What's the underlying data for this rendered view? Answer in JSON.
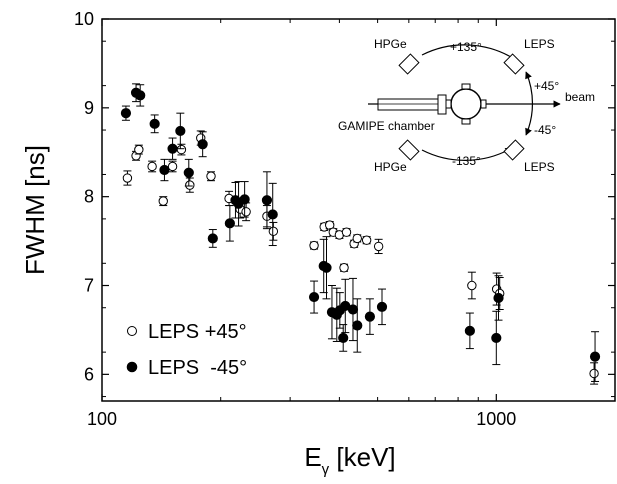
{
  "chart_data": {
    "type": "scatter",
    "title": "",
    "xlabel_main": "E",
    "xlabel_sub": "γ",
    "xlabel_unit": " [keV]",
    "ylabel": "FWHM [ns]",
    "xscale": "log",
    "xlim": [
      100,
      2000
    ],
    "ylim": [
      5.7,
      10
    ],
    "x_ticks": [
      100,
      1000
    ],
    "x_tick_labels": [
      "100",
      "1000"
    ],
    "y_ticks": [
      6,
      7,
      8,
      9,
      10
    ],
    "y_tick_labels": [
      "6",
      "7",
      "8",
      "9",
      "10"
    ],
    "grid": false,
    "legend_position": "bottom-left",
    "series": [
      {
        "name": "LEPS +45°",
        "marker": "open-circle",
        "points": [
          {
            "x": 116,
            "y": 8.21,
            "err": 0.08
          },
          {
            "x": 122,
            "y": 8.46,
            "err": 0.05
          },
          {
            "x": 124,
            "y": 8.53,
            "err": 0.05
          },
          {
            "x": 134,
            "y": 8.34,
            "err": 0.06
          },
          {
            "x": 143,
            "y": 7.95,
            "err": 0.05
          },
          {
            "x": 151,
            "y": 8.34,
            "err": 0.06
          },
          {
            "x": 159,
            "y": 8.53,
            "err": 0.06
          },
          {
            "x": 167,
            "y": 8.13,
            "err": 0.08
          },
          {
            "x": 178,
            "y": 8.66,
            "err": 0.08
          },
          {
            "x": 189,
            "y": 8.23,
            "err": 0.05
          },
          {
            "x": 210,
            "y": 7.98,
            "err": 0.08
          },
          {
            "x": 224,
            "y": 7.86,
            "err": 0.1
          },
          {
            "x": 232,
            "y": 7.83,
            "err": 0.1
          },
          {
            "x": 262,
            "y": 7.78,
            "err": 0.12
          },
          {
            "x": 272,
            "y": 7.61,
            "err": 0.1
          },
          {
            "x": 345,
            "y": 7.45,
            "err": 0.04
          },
          {
            "x": 366,
            "y": 7.66,
            "err": 0.04
          },
          {
            "x": 378,
            "y": 7.68,
            "err": 0.04
          },
          {
            "x": 386,
            "y": 7.6,
            "err": 0.04
          },
          {
            "x": 400,
            "y": 7.57,
            "err": 0.04
          },
          {
            "x": 411,
            "y": 7.2,
            "err": 0.04
          },
          {
            "x": 417,
            "y": 7.6,
            "err": 0.04
          },
          {
            "x": 436,
            "y": 7.47,
            "err": 0.04
          },
          {
            "x": 444,
            "y": 7.53,
            "err": 0.04
          },
          {
            "x": 469,
            "y": 7.51,
            "err": 0.04
          },
          {
            "x": 503,
            "y": 7.44,
            "err": 0.08
          },
          {
            "x": 867,
            "y": 7.0,
            "err": 0.15
          },
          {
            "x": 1002,
            "y": 6.96,
            "err": 0.18
          },
          {
            "x": 1020,
            "y": 6.91,
            "err": 0.18
          },
          {
            "x": 1770,
            "y": 6.01,
            "err": 0.12
          }
        ]
      },
      {
        "name": "LEPS  -45°",
        "marker": "filled-circle",
        "points": [
          {
            "x": 115,
            "y": 8.94,
            "err": 0.08
          },
          {
            "x": 122,
            "y": 9.17,
            "err": 0.1
          },
          {
            "x": 125,
            "y": 9.14,
            "err": 0.12
          },
          {
            "x": 136,
            "y": 8.82,
            "err": 0.1
          },
          {
            "x": 144,
            "y": 8.3,
            "err": 0.12
          },
          {
            "x": 151,
            "y": 8.54,
            "err": 0.12
          },
          {
            "x": 158,
            "y": 8.74,
            "err": 0.2
          },
          {
            "x": 166,
            "y": 8.27,
            "err": 0.15
          },
          {
            "x": 180,
            "y": 8.59,
            "err": 0.14
          },
          {
            "x": 191,
            "y": 7.53,
            "err": 0.1
          },
          {
            "x": 211,
            "y": 7.7,
            "err": 0.2
          },
          {
            "x": 218,
            "y": 7.96,
            "err": 0.2
          },
          {
            "x": 222,
            "y": 7.92,
            "err": 0.25
          },
          {
            "x": 230,
            "y": 7.97,
            "err": 0.2
          },
          {
            "x": 262,
            "y": 7.96,
            "err": 0.32
          },
          {
            "x": 271,
            "y": 7.8,
            "err": 0.35
          },
          {
            "x": 345,
            "y": 6.87,
            "err": 0.18
          },
          {
            "x": 365,
            "y": 7.22,
            "err": 0.3
          },
          {
            "x": 371,
            "y": 7.2,
            "err": 0.35
          },
          {
            "x": 383,
            "y": 6.7,
            "err": 0.3
          },
          {
            "x": 394,
            "y": 6.67,
            "err": 0.3
          },
          {
            "x": 401,
            "y": 6.72,
            "err": 0.2
          },
          {
            "x": 409,
            "y": 6.41,
            "err": 0.15
          },
          {
            "x": 414,
            "y": 6.77,
            "err": 0.3
          },
          {
            "x": 433,
            "y": 6.73,
            "err": 0.35
          },
          {
            "x": 444,
            "y": 6.55,
            "err": 0.3
          },
          {
            "x": 478,
            "y": 6.65,
            "err": 0.2
          },
          {
            "x": 513,
            "y": 6.76,
            "err": 0.2
          },
          {
            "x": 857,
            "y": 6.49,
            "err": 0.2
          },
          {
            "x": 1000,
            "y": 6.41,
            "err": 0.3
          },
          {
            "x": 1013,
            "y": 6.86,
            "err": 0.25
          },
          {
            "x": 1780,
            "y": 6.2,
            "err": 0.28
          }
        ]
      }
    ],
    "inset": {
      "beam_label": "beam",
      "chamber_label": "GAMIPE chamber",
      "hpge_top_label": "HPGe",
      "hpge_bottom_label": "HPGe",
      "leps_top_label": "LEPS",
      "leps_bottom_label": "LEPS",
      "angle_p135": "+135°",
      "angle_p45": "+45°",
      "angle_m45": "-45°",
      "angle_m135": "-135°"
    }
  }
}
